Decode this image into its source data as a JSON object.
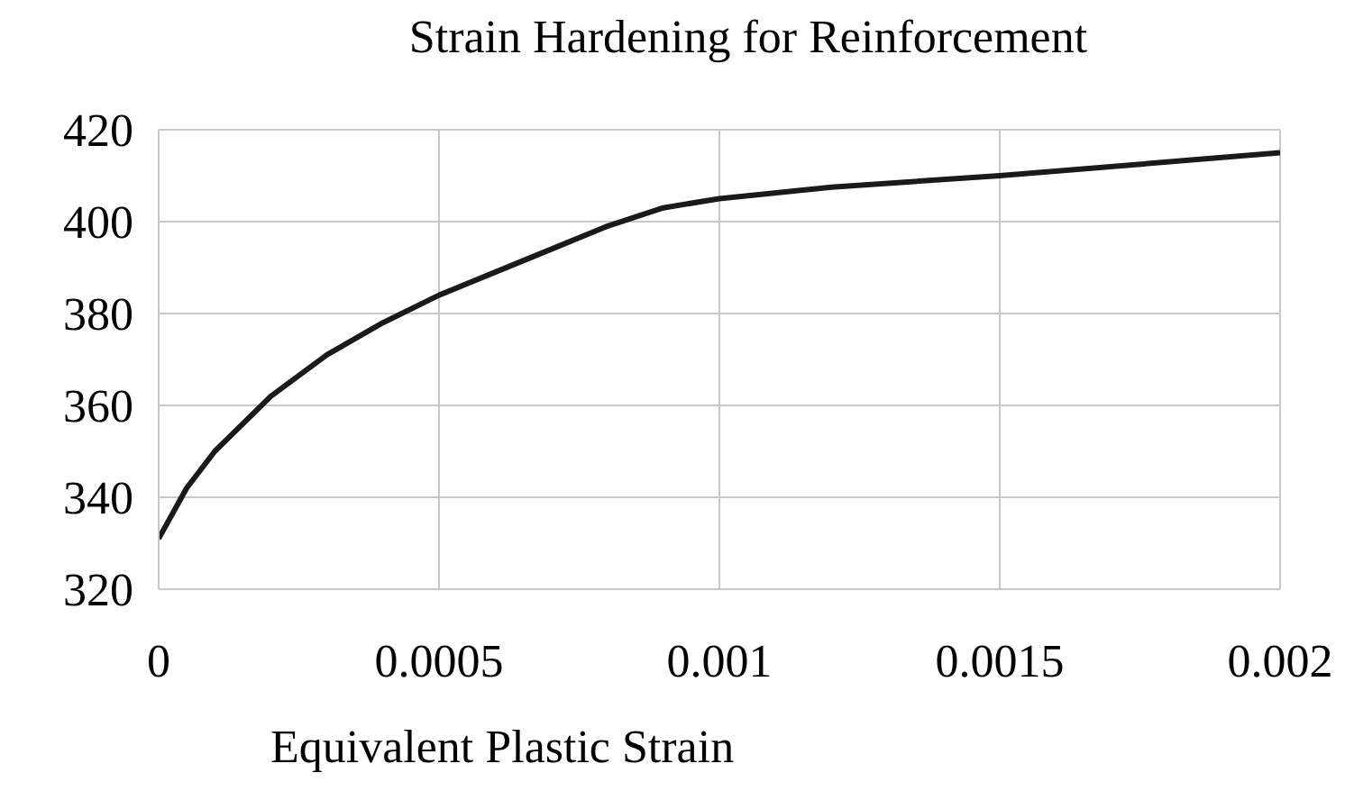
{
  "chart_data": {
    "type": "line",
    "title": "Strain Hardening for Reinforcement",
    "xlabel": "Equivalent Plastic Strain",
    "x": [
      0,
      5e-05,
      0.0001,
      0.0002,
      0.0003,
      0.0004,
      0.0005,
      0.0006,
      0.0007,
      0.0008,
      0.0009,
      0.001,
      0.0012,
      0.0015,
      0.002
    ],
    "series": [
      {
        "color": "#1a1a1a",
        "values": [
          331,
          342,
          350,
          362,
          371,
          378,
          384,
          389,
          394,
          399,
          403,
          405,
          407.5,
          410,
          415
        ]
      }
    ],
    "xlim": [
      0,
      0.002
    ],
    "xticks": [
      0,
      0.0005,
      0.001,
      0.0015,
      0.002
    ],
    "ylim": [
      320,
      420
    ],
    "yticks": [
      320,
      340,
      360,
      380,
      400,
      420
    ],
    "grid": true,
    "marker": "none",
    "line_style": "solid"
  }
}
